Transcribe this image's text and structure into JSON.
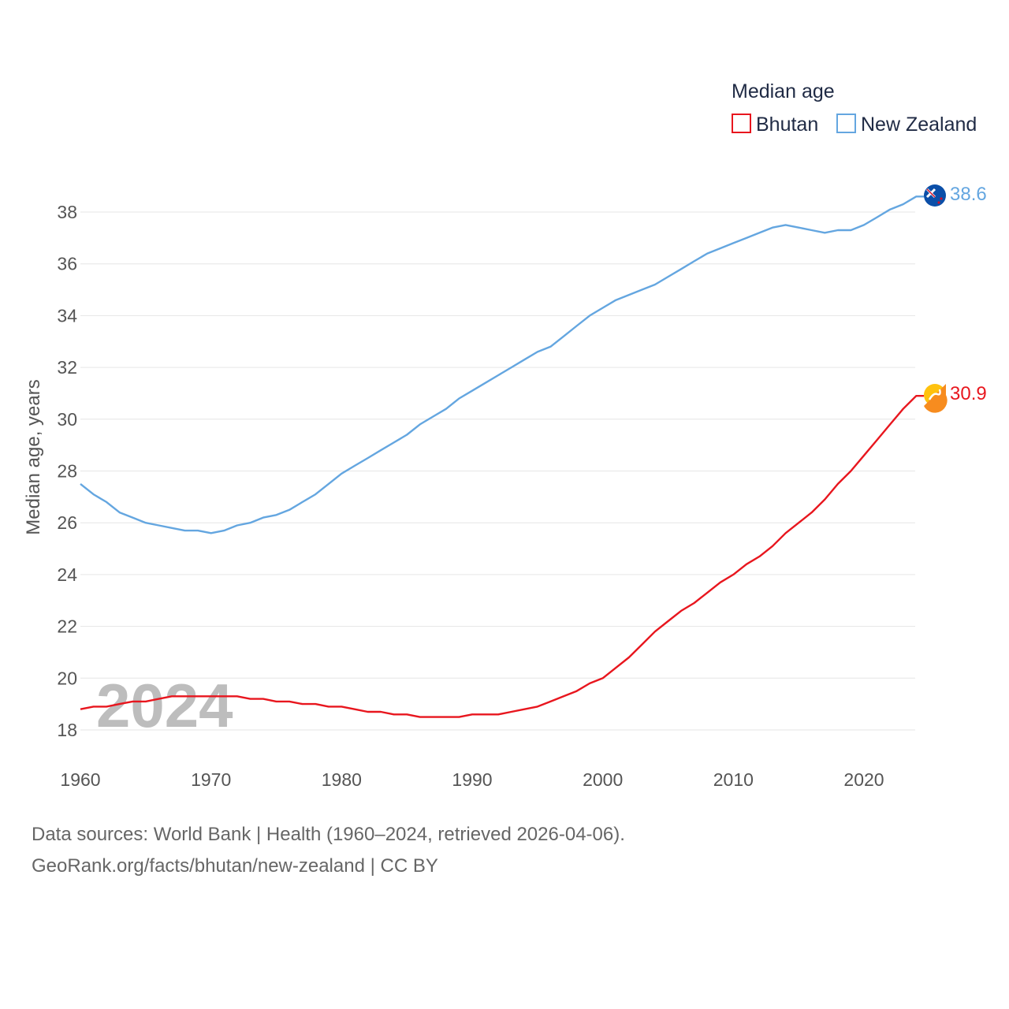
{
  "chart_data": {
    "type": "line",
    "legend_title": "Median age",
    "ylabel": "Median age, years",
    "year_watermark": "2024",
    "ylim": [
      17,
      39
    ],
    "xlim": [
      1960,
      2025
    ],
    "y_ticks": [
      18,
      20,
      22,
      24,
      26,
      28,
      30,
      32,
      34,
      36,
      38
    ],
    "x_ticks": [
      1960,
      1970,
      1980,
      1990,
      2000,
      2010,
      2020
    ],
    "x": [
      1960,
      1961,
      1962,
      1963,
      1964,
      1965,
      1966,
      1967,
      1968,
      1969,
      1970,
      1971,
      1972,
      1973,
      1974,
      1975,
      1976,
      1977,
      1978,
      1979,
      1980,
      1981,
      1982,
      1983,
      1984,
      1985,
      1986,
      1987,
      1988,
      1989,
      1990,
      1991,
      1992,
      1993,
      1994,
      1995,
      1996,
      1997,
      1998,
      1999,
      2000,
      2001,
      2002,
      2003,
      2004,
      2005,
      2006,
      2007,
      2008,
      2009,
      2010,
      2011,
      2012,
      2013,
      2014,
      2015,
      2016,
      2017,
      2018,
      2019,
      2020,
      2021,
      2022,
      2023,
      2024
    ],
    "series": [
      {
        "name": "Bhutan",
        "color": "#e8161e",
        "end_label": "30.9",
        "values": [
          18.8,
          18.9,
          18.9,
          19.0,
          19.1,
          19.1,
          19.2,
          19.3,
          19.3,
          19.3,
          19.3,
          19.3,
          19.3,
          19.2,
          19.2,
          19.1,
          19.1,
          19.0,
          19.0,
          18.9,
          18.9,
          18.8,
          18.7,
          18.7,
          18.6,
          18.6,
          18.5,
          18.5,
          18.5,
          18.5,
          18.6,
          18.6,
          18.6,
          18.7,
          18.8,
          18.9,
          19.1,
          19.3,
          19.5,
          19.8,
          20.0,
          20.4,
          20.8,
          21.3,
          21.8,
          22.2,
          22.6,
          22.9,
          23.3,
          23.7,
          24.0,
          24.4,
          24.7,
          25.1,
          25.6,
          26.0,
          26.4,
          26.9,
          27.5,
          28.0,
          28.6,
          29.2,
          29.8,
          30.4,
          30.9
        ]
      },
      {
        "name": "New Zealand",
        "color": "#64a6e0",
        "end_label": "38.6",
        "values": [
          27.5,
          27.1,
          26.8,
          26.4,
          26.2,
          26.0,
          25.9,
          25.8,
          25.7,
          25.7,
          25.6,
          25.7,
          25.9,
          26.0,
          26.2,
          26.3,
          26.5,
          26.8,
          27.1,
          27.5,
          27.9,
          28.2,
          28.5,
          28.8,
          29.1,
          29.4,
          29.8,
          30.1,
          30.4,
          30.8,
          31.1,
          31.4,
          31.7,
          32.0,
          32.3,
          32.6,
          32.8,
          33.2,
          33.6,
          34.0,
          34.3,
          34.6,
          34.8,
          35.0,
          35.2,
          35.5,
          35.8,
          36.1,
          36.4,
          36.6,
          36.8,
          37.0,
          37.2,
          37.4,
          37.5,
          37.4,
          37.3,
          37.2,
          37.3,
          37.3,
          37.5,
          37.8,
          38.1,
          38.3,
          38.6
        ]
      }
    ]
  },
  "footer": {
    "source_line": "Data sources: World Bank | Health (1960–2024, retrieved 2026-04-06).",
    "url_line": "GeoRank.org/facts/bhutan/new-zealand | CC BY"
  }
}
